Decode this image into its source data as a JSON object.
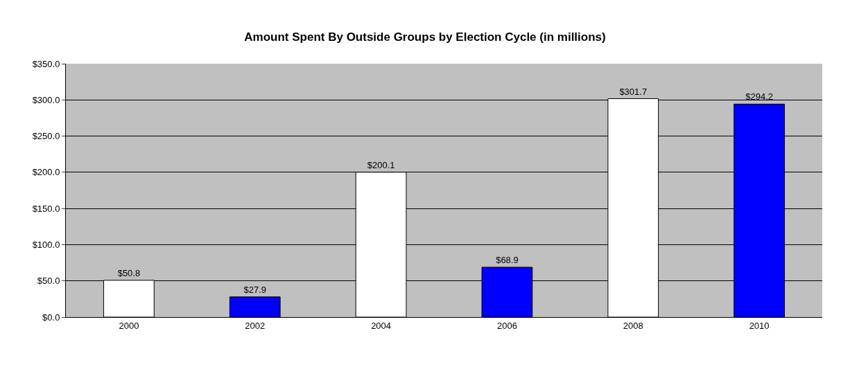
{
  "chart_data": {
    "type": "bar",
    "title": "Amount Spent By Outside Groups by Election Cycle (in millions)",
    "categories": [
      "2000",
      "2002",
      "2004",
      "2006",
      "2008",
      "2010"
    ],
    "values": [
      50.8,
      27.9,
      200.1,
      68.9,
      301.7,
      294.2
    ],
    "colors": [
      "#ffffff",
      "#0000ff",
      "#ffffff",
      "#0000ff",
      "#ffffff",
      "#0000ff"
    ],
    "value_labels": [
      "$50.8",
      "$27.9",
      "$200.1",
      "$68.9",
      "$301.7",
      "$294.2"
    ],
    "ylim": [
      0,
      350
    ],
    "yticks": [
      {
        "value": 0,
        "label": "$0.0"
      },
      {
        "value": 50,
        "label": "$50.0"
      },
      {
        "value": 100,
        "label": "$100.0"
      },
      {
        "value": 150,
        "label": "$150.0"
      },
      {
        "value": 200,
        "label": "$200.0"
      },
      {
        "value": 250,
        "label": "$250.0"
      },
      {
        "value": 300,
        "label": "$300.0"
      },
      {
        "value": 350,
        "label": "$350.0"
      }
    ],
    "grid": "y"
  }
}
